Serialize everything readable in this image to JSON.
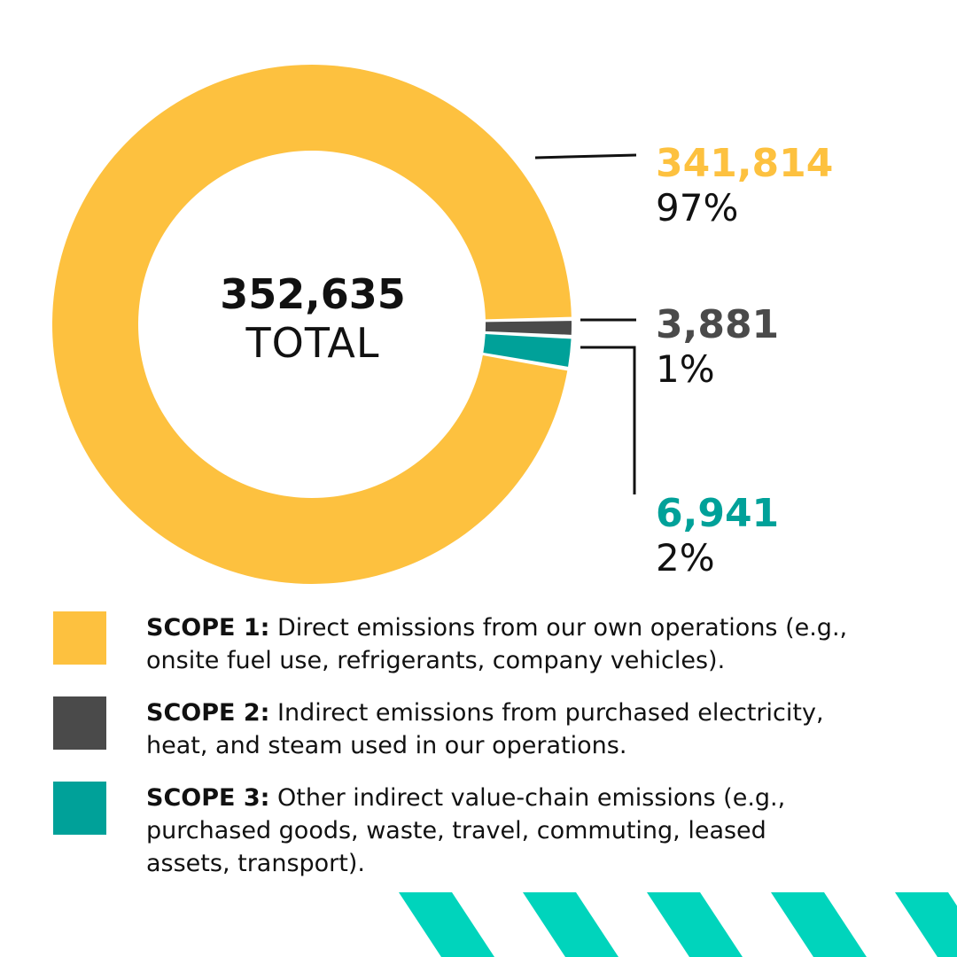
{
  "total": {
    "value": "352,635",
    "label": "TOTAL"
  },
  "chart_data": {
    "type": "pie",
    "donut": true,
    "total": 352635,
    "slices": [
      {
        "label": "SCOPE 1",
        "value": 341814,
        "value_label": "341,814",
        "percent_label": "97%",
        "color": "#FDC13F"
      },
      {
        "label": "SCOPE 2",
        "value": 3881,
        "value_label": "3,881",
        "percent_label": "1%",
        "color": "#4A4A4A"
      },
      {
        "label": "SCOPE 3",
        "value": 6941,
        "value_label": "6,941",
        "percent_label": "2%",
        "color": "#00A199"
      }
    ]
  },
  "legend": [
    {
      "title": "SCOPE 1:",
      "text": " Direct emissions from our own operations (e.g., onsite fuel use, refrigerants, company vehicles).",
      "color": "#FDC13F"
    },
    {
      "title": "SCOPE 2:",
      "text": " Indirect emissions from purchased electricity, heat, and steam used in our operations.",
      "color": "#4A4A4A"
    },
    {
      "title": "SCOPE 3:",
      "text": " Other indirect value-chain emissions (e.g., purchased goods, waste, travel, commuting, leased assets, transport).",
      "color": "#00A199"
    }
  ],
  "decor": {
    "stripe_color": "#00D4BC"
  }
}
